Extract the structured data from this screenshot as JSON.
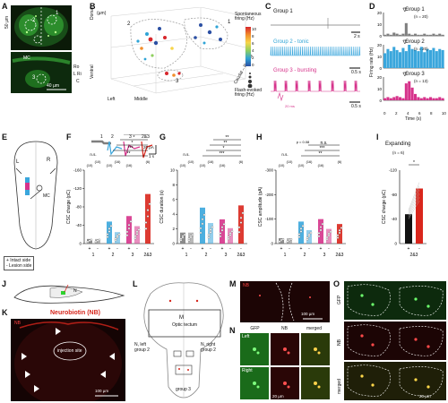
{
  "panels": {
    "A": {
      "letter": "A",
      "scale_top": "50 µm",
      "scale_bottom": "40 µm",
      "mc": "MC",
      "num_1": "1",
      "num_2": "2",
      "num_3": "3",
      "dir_ro": "Ro",
      "dir_lr": "L   Ri",
      "dir_c": "C"
    },
    "B": {
      "letter": "B",
      "unit": "(µm)",
      "dorsal": "Dorsal",
      "ventral": "Ventral",
      "left": "Left",
      "middle": "Middle",
      "caudal_rostral": "Caudal – Rostral",
      "cb_title": "Spontaneous\nfiring (Hz)",
      "cb_ticks": [
        "10",
        "8",
        "6",
        "4",
        "2",
        "0"
      ],
      "size_title": "Flash-evoked\nfiring (Hz)",
      "ax_z": [
        "500",
        "400",
        "300",
        "200",
        "100"
      ],
      "ax_x": [
        "160",
        "140",
        "120",
        "100",
        "80",
        "60",
        "40"
      ],
      "ax_y": [
        "0",
        "50",
        "100",
        "150",
        "-90",
        "-50",
        "-30",
        "10"
      ],
      "groups": [
        "1",
        "2",
        "3"
      ]
    },
    "C": {
      "letter": "C",
      "g1": "Group 1",
      "g2": "Group 2 - tonic",
      "g3": "Group 3 - bursting",
      "s1": "2 s",
      "s2": "0.5 s",
      "s3": "0.5 s",
      "s4": "20 ms"
    },
    "D": {
      "letter": "D",
      "g1": "Group 1",
      "g2": "Group 2",
      "g3": "Group 3",
      "n1": "(n = 20)",
      "n2": "(n = 20)",
      "n3": "(n = 13)",
      "ylabel": "Firing rate (Hz)",
      "xlabel": "Time (s)",
      "yt1": [
        "20",
        "10",
        "0"
      ],
      "yt2": [
        "20",
        "10",
        "0"
      ],
      "yt3": [
        "20",
        "10",
        "0"
      ],
      "xticks": [
        "0",
        "2",
        "4",
        "6",
        "8",
        "10"
      ]
    },
    "E": {
      "letter": "E",
      "L": "L",
      "R": "R",
      "mc": "MC",
      "leg_plus": "+ Intact side",
      "leg_minus": "- Lesion side"
    },
    "F": {
      "letter": "F",
      "ylabel": "CSC charge (pC)",
      "yt": [
        "0",
        "-40",
        "-80",
        "-120",
        "-160"
      ],
      "groups": [
        "1",
        "2",
        "3",
        "2&3"
      ],
      "trace_labels": [
        "1",
        "2",
        "3",
        "2&3"
      ],
      "scale_pa": "20 pA",
      "scale_s": "1 s",
      "ns": "n.s.",
      "ns_list": [
        "(10)",
        "(10)",
        "(10)",
        "(16)",
        "(16)",
        "(6)"
      ],
      "stars": [
        "**",
        "***",
        "*",
        "*",
        "**"
      ]
    },
    "G": {
      "letter": "G",
      "ylabel": "CSC duration (s)",
      "yt": [
        "0",
        "2",
        "4",
        "6",
        "8",
        "10"
      ],
      "groups": [
        "1",
        "2",
        "3",
        "2&3"
      ],
      "ns": "n.s.",
      "ns_list": [
        "(10)",
        "(10)",
        "(10)",
        "(16)",
        "(16)",
        "(6)"
      ],
      "stars": [
        "***",
        "*",
        "**",
        "**"
      ]
    },
    "H": {
      "letter": "H",
      "ylabel": "CSC amplitude (pA)",
      "yt": [
        "0",
        "-100",
        "-200",
        "-300"
      ],
      "groups": [
        "1",
        "2",
        "3",
        "2&3"
      ],
      "ns": "n.s.",
      "pval": "p = 0.08",
      "ns_list": [
        "(10)",
        "(10)",
        "(10)",
        "(16)",
        "(16)",
        "(6)"
      ],
      "stars": [
        "**",
        "***",
        "n.s."
      ]
    },
    "I": {
      "letter": "I",
      "title": "Expanding",
      "n": "(n = 6)",
      "ylabel": "CSC charge (pC)",
      "yt": [
        "0",
        "-40",
        "-80",
        "-120"
      ],
      "group": "2&3",
      "star": "*"
    },
    "J": {
      "letter": "J",
      "n": "N"
    },
    "K": {
      "letter": "K",
      "title": "Neurobiotin (NB)",
      "nb": "NB",
      "site": "injection site",
      "scale": "100 µm"
    },
    "L": {
      "letter": "L",
      "m": "M",
      "optic": "Optic tectum",
      "nl": "N, left\ngroup 2",
      "nr": "N, right\ngroup 2",
      "g3": "group 3"
    },
    "M": {
      "letter": "M",
      "nb": "NB",
      "scale": "100 µm"
    },
    "N": {
      "letter": "N",
      "cols": [
        "GFP",
        "NB",
        "merged"
      ],
      "rows": [
        "Left",
        "Right"
      ],
      "scale": "20 µm"
    },
    "O": {
      "letter": "O",
      "rows": [
        "GFP",
        "NB",
        "merged"
      ],
      "scale": "20 µm"
    }
  },
  "colors": {
    "g1": "#7f7f7f",
    "g2": "#3aa6dc",
    "g3": "#d6338b",
    "g23": "#d9261c",
    "green": "#2fd12f",
    "red": "#e0221e"
  },
  "chart_data": [
    {
      "type": "bar",
      "title": "",
      "ylabel": "CSC charge (pC)",
      "categories": [
        "1+",
        "1-",
        "2+",
        "2-",
        "3+",
        "3-",
        "2&3-"
      ],
      "series": [
        {
          "values": [
            -10,
            -10,
            -48,
            -25,
            -60,
            -38,
            -108
          ]
        }
      ],
      "ylim": [
        -160,
        0
      ]
    },
    {
      "type": "bar",
      "title": "",
      "ylabel": "CSC duration (s)",
      "categories": [
        "1+",
        "1-",
        "2+",
        "2-",
        "3+",
        "3-",
        "2&3-"
      ],
      "series": [
        {
          "values": [
            1.5,
            1.5,
            4.9,
            2.8,
            3.3,
            2.1,
            5.2
          ]
        }
      ],
      "ylim": [
        0,
        10
      ]
    },
    {
      "type": "bar",
      "title": "",
      "ylabel": "CSC amplitude (pA)",
      "categories": [
        "1+",
        "1-",
        "2+",
        "2-",
        "3+",
        "3-",
        "2&3-"
      ],
      "series": [
        {
          "values": [
            -22,
            -22,
            -90,
            -55,
            -100,
            -60,
            -80
          ]
        }
      ],
      "ylim": [
        -300,
        0
      ]
    },
    {
      "type": "bar",
      "title": "Expanding",
      "ylabel": "CSC charge (pC)",
      "categories": [
        "2&3+",
        "2&3-"
      ],
      "series": [
        {
          "values": [
            -48,
            -90
          ]
        }
      ],
      "ylim": [
        -120,
        0
      ]
    }
  ]
}
